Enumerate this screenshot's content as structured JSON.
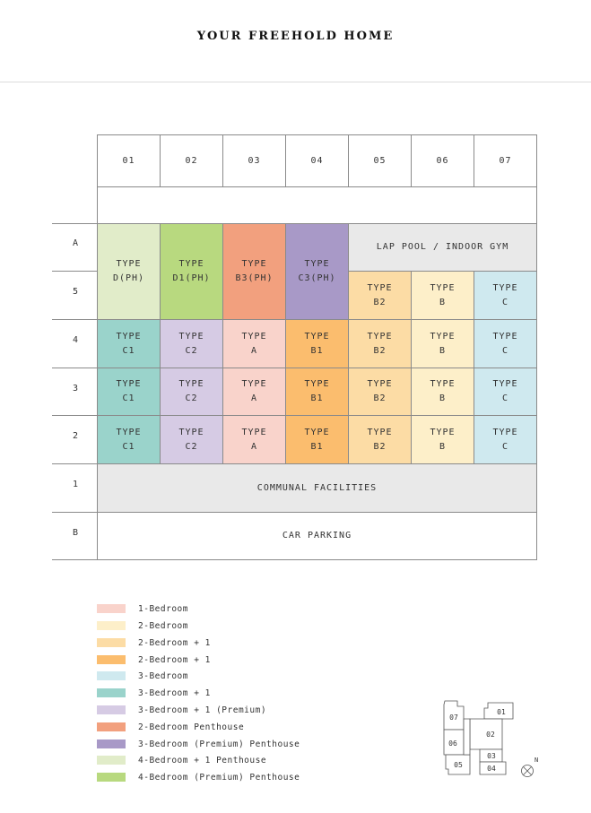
{
  "title": "YOUR FREEHOLD HOME",
  "columns": [
    "01",
    "02",
    "03",
    "04",
    "05",
    "06",
    "07"
  ],
  "row_labels": [
    "A",
    "5",
    "4",
    "3",
    "2",
    "1",
    "B"
  ],
  "colors": {
    "one_bed": "#f9d3cb",
    "two_bed": "#fdefc9",
    "two_bed_plus_one": "#fcdca5",
    "two_bed_plus_one_b1": "#fbbd6e",
    "three_bed": "#cfe9ef",
    "three_bed_plus_one": "#9ad3cb",
    "three_bed_plus_one_premium": "#d6cbe4",
    "two_bed_penthouse": "#f2a07e",
    "three_bed_premium_penthouse": "#a899c7",
    "four_bed_plus_one_penthouse": "#e1ecc9",
    "four_bed_premium_penthouse": "#b8d97f",
    "facility": "#e9e9e9"
  },
  "units": {
    "d_ph": {
      "line1": "TYPE",
      "line2": "D(PH)"
    },
    "d1_ph": {
      "line1": "TYPE",
      "line2": "D1(PH)"
    },
    "b3_ph": {
      "line1": "TYPE",
      "line2": "B3(PH)"
    },
    "c3_ph": {
      "line1": "TYPE",
      "line2": "C3(PH)"
    },
    "b2": {
      "line1": "TYPE",
      "line2": "B2"
    },
    "b": {
      "line1": "TYPE",
      "line2": "B"
    },
    "c": {
      "line1": "TYPE",
      "line2": "C"
    },
    "c1": {
      "line1": "TYPE",
      "line2": "C1"
    },
    "c2": {
      "line1": "TYPE",
      "line2": "C2"
    },
    "a": {
      "line1": "TYPE",
      "line2": "A"
    },
    "b1": {
      "line1": "TYPE",
      "line2": "B1"
    }
  },
  "facilities": {
    "lap_pool": "LAP POOL / INDOOR GYM",
    "communal": "COMMUNAL FACILITIES",
    "car_parking": "CAR PARKING"
  },
  "legend": [
    {
      "label": "1-Bedroom",
      "color": "#f9d3cb"
    },
    {
      "label": "2-Bedroom",
      "color": "#fdefc9"
    },
    {
      "label": "2-Bedroom + 1",
      "color": "#fcdca5"
    },
    {
      "label": "2-Bedroom + 1",
      "color": "#fbbd6e"
    },
    {
      "label": "3-Bedroom",
      "color": "#cfe9ef"
    },
    {
      "label": "3-Bedroom + 1",
      "color": "#9ad3cb"
    },
    {
      "label": "3-Bedroom + 1 (Premium)",
      "color": "#d6cbe4"
    },
    {
      "label": "2-Bedroom Penthouse",
      "color": "#f2a07e"
    },
    {
      "label": "3-Bedroom (Premium) Penthouse",
      "color": "#a899c7"
    },
    {
      "label": "4-Bedroom + 1 Penthouse",
      "color": "#e1ecc9"
    },
    {
      "label": "4-Bedroom (Premium) Penthouse",
      "color": "#b8d97f"
    }
  ],
  "keyplan": {
    "labels": [
      "01",
      "02",
      "03",
      "04",
      "05",
      "06",
      "07"
    ],
    "north": "N"
  }
}
